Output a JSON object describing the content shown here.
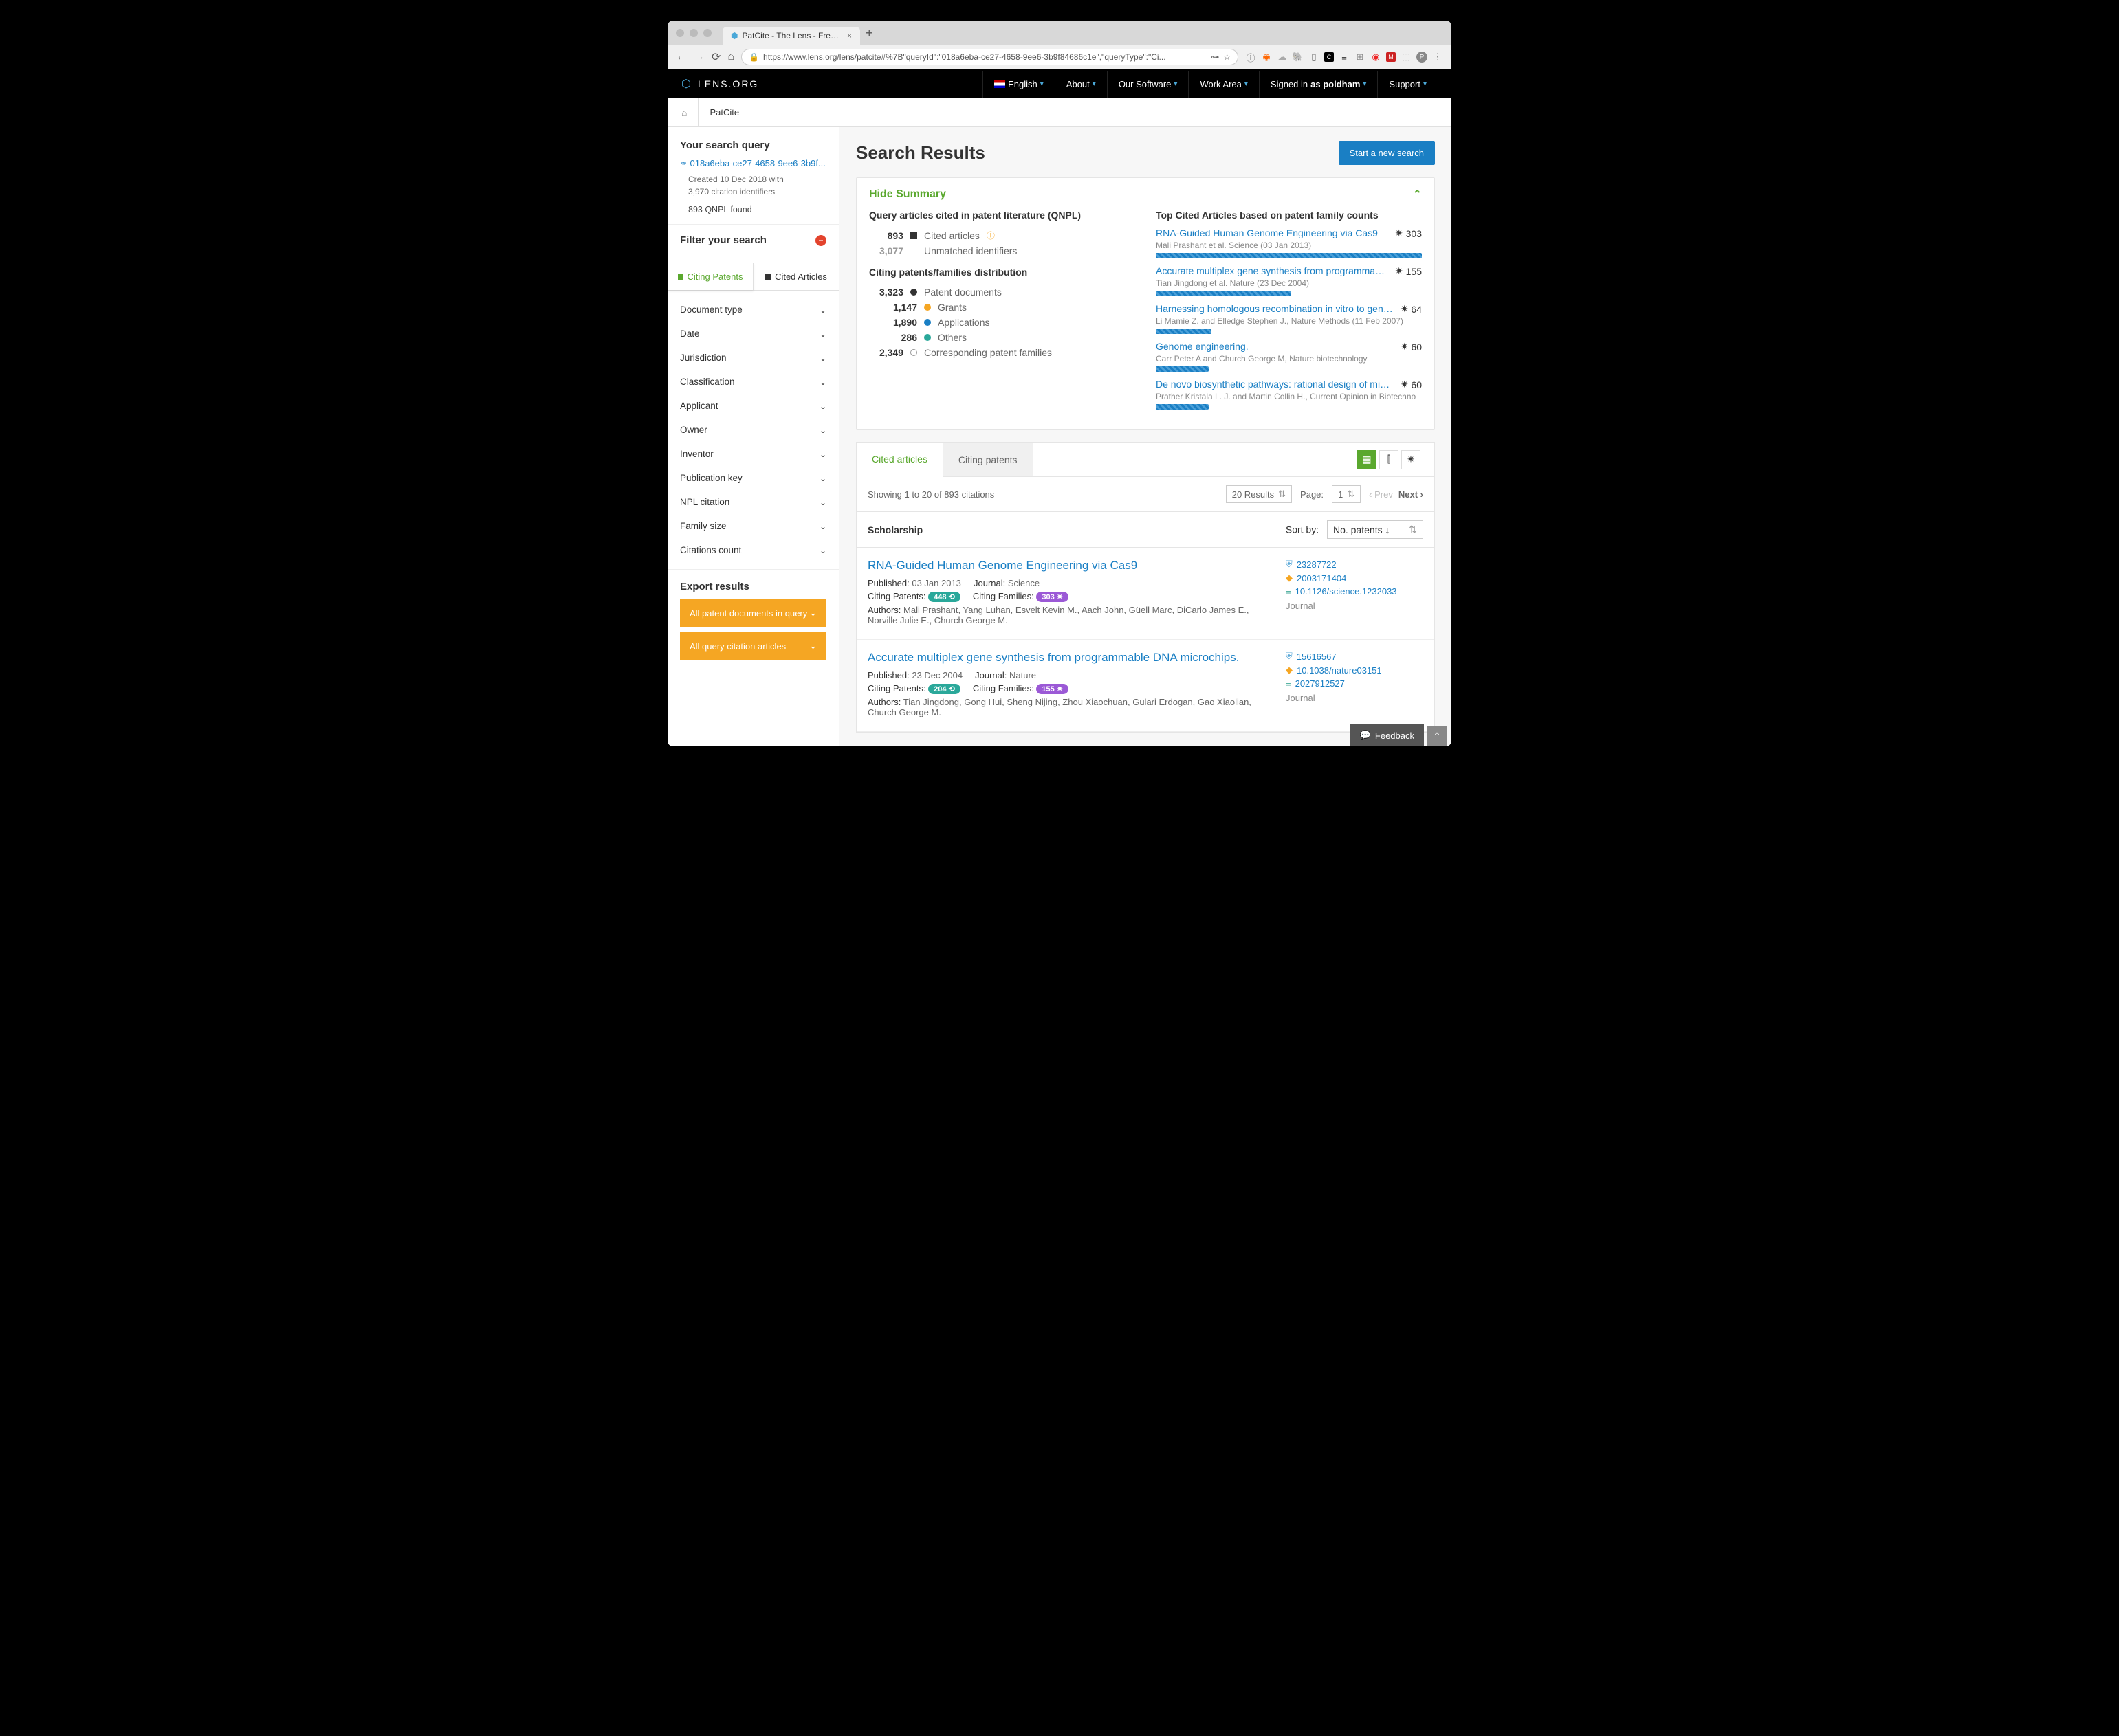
{
  "browser": {
    "tab_title": "PatCite - The Lens - Free & O",
    "url": "https://www.lens.org/lens/patcite#%7B\"queryId\":\"018a6eba-ce27-4658-9ee6-3b9f84686c1e\",\"queryType\":\"Ci..."
  },
  "header": {
    "logo_text": "LENS.ORG",
    "nav": {
      "lang": "English",
      "about": "About",
      "software": "Our Software",
      "work": "Work Area",
      "signed_prefix": "Signed in ",
      "signed_as": "as poldham",
      "support": "Support"
    }
  },
  "breadcrumb": {
    "page": "PatCite"
  },
  "sidebar": {
    "query_heading": "Your search query",
    "query_id": "018a6eba-ce27-4658-9ee6-3b9f...",
    "created_line": "Created 10 Dec 2018 with",
    "citation_line": "3,970 citation identifiers",
    "qnpl_found": "893 QNPL found",
    "filter_heading": "Filter your search",
    "filter_tabs": {
      "citing": "Citing Patents",
      "cited": "Cited Articles"
    },
    "filters": [
      "Document type",
      "Date",
      "Jurisdiction",
      "Classification",
      "Applicant",
      "Owner",
      "Inventor",
      "Publication key",
      "NPL citation",
      "Family size",
      "Citations count"
    ],
    "export_heading": "Export results",
    "export_buttons": [
      "All patent documents in query",
      "All query citation articles"
    ]
  },
  "content": {
    "title": "Search Results",
    "new_search": "Start a new search",
    "hide_summary": "Hide Summary",
    "qnpl_heading": "Query articles cited in patent literature (QNPL)",
    "stats": {
      "cited_n": "893",
      "cited_label": "Cited articles",
      "unmatched_n": "3,077",
      "unmatched_label": "Unmatched identifiers",
      "dist_heading": "Citing patents/families distribution",
      "docs_n": "3,323",
      "docs_label": "Patent documents",
      "grants_n": "1,147",
      "grants_label": "Grants",
      "apps_n": "1,890",
      "apps_label": "Applications",
      "others_n": "286",
      "others_label": "Others",
      "fam_n": "2,349",
      "fam_label": "Corresponding patent families"
    },
    "colors": {
      "cited": "#333333",
      "docs": "#333333",
      "grants": "#f5a623",
      "apps": "#1a7fc4",
      "others": "#2aa89a",
      "fam": "#ffffff"
    },
    "top_cited_heading": "Top Cited Articles based on patent family counts",
    "top_cited": [
      {
        "title": "RNA-Guided Human Genome Engineering via Cas9",
        "meta": "Mali Prashant et al. Science (03 Jan 2013)",
        "count": "303",
        "bar": 100
      },
      {
        "title": "Accurate multiplex gene synthesis from programmable D…",
        "meta": "Tian Jingdong et al. Nature (23 Dec 2004)",
        "count": "155",
        "bar": 51
      },
      {
        "title": "Harnessing homologous recombination in vitro to genera…",
        "meta": "Li Mamie Z. and Elledge Stephen J., Nature Methods (11 Feb 2007)",
        "count": "64",
        "bar": 21
      },
      {
        "title": "Genome engineering.",
        "meta": "Carr Peter A and Church George M, Nature biotechnology",
        "count": "60",
        "bar": 20
      },
      {
        "title": "De novo biosynthetic pathways: rational design of microb…",
        "meta": "Prather Kristala L. J. and Martin Collin H., Current Opinion in Biotechno",
        "count": "60",
        "bar": 20
      }
    ],
    "result_tabs": {
      "cited": "Cited articles",
      "citing": "Citing patents"
    },
    "showing": "Showing 1 to 20 of 893 citations",
    "page_size": "20 Results",
    "page_label": "Page:",
    "page_num": "1",
    "prev": "Prev",
    "next": "Next",
    "section_heading": "Scholarship",
    "sort_label": "Sort by:",
    "sort_value": "No. patents ↓",
    "citations": [
      {
        "title": "RNA-Guided Human Genome Engineering via Cas9",
        "published_label": "Published:",
        "published": "03 Jan 2013",
        "journal_label": "Journal:",
        "journal": "Science",
        "cp_label": "Citing Patents:",
        "cp": "448",
        "cf_label": "Citing Families:",
        "cf": "303",
        "authors_label": "Authors:",
        "authors": "Mali Prashant, Yang Luhan, Esvelt Kevin M., Aach John, Güell Marc, DiCarlo James E., Norville Julie E., Church George M.",
        "id1": "23287722",
        "id2": "2003171404",
        "id3": "10.1126/science.1232033",
        "type": "Journal"
      },
      {
        "title": "Accurate multiplex gene synthesis from programmable DNA microchips.",
        "published_label": "Published:",
        "published": "23 Dec 2004",
        "journal_label": "Journal:",
        "journal": "Nature",
        "cp_label": "Citing Patents:",
        "cp": "204",
        "cf_label": "Citing Families:",
        "cf": "155",
        "authors_label": "Authors:",
        "authors": "Tian Jingdong, Gong Hui, Sheng Nijing, Zhou Xiaochuan, Gulari Erdogan, Gao Xiaolian, Church George M.",
        "id1": "15616567",
        "id2": "10.1038/nature03151",
        "id3": "2027912527",
        "type": "Journal"
      }
    ],
    "feedback": "Feedback"
  }
}
